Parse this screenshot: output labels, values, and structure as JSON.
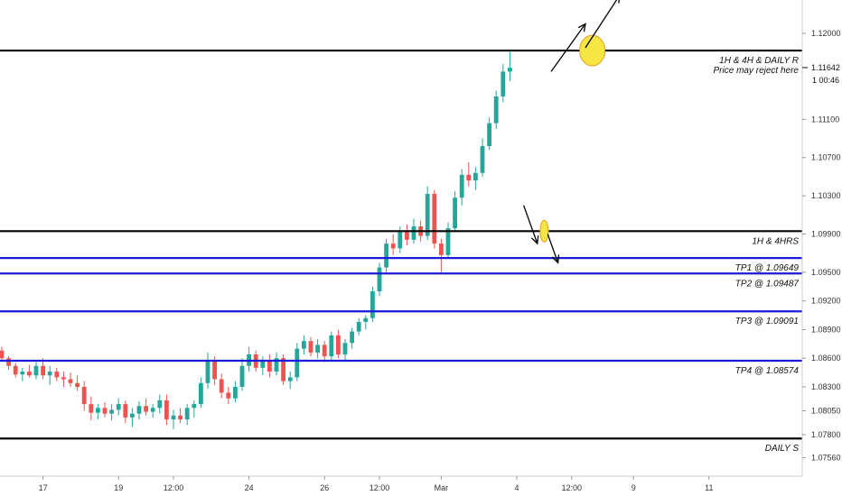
{
  "chart_data": {
    "type": "candlestick",
    "instrument_hint": "EURUSD-style price chart",
    "y_axis": {
      "ticks": [
        "1.12000",
        "1.11100",
        "1.10700",
        "1.10300",
        "1.09900",
        "1.09500",
        "1.09200",
        "1.08900",
        "1.08600",
        "1.08300",
        "1.08050",
        "1.07800",
        "1.07560"
      ],
      "tick_values": [
        1.12,
        1.111,
        1.107,
        1.103,
        1.099,
        1.095,
        1.092,
        1.089,
        1.086,
        1.083,
        1.0805,
        1.078,
        1.0756
      ],
      "current_price": "1.11642",
      "countdown": "1 00:46"
    },
    "x_axis": {
      "ticks": [
        "17",
        "19",
        "12:00",
        "24",
        "26",
        "12:00",
        "Mar",
        "4",
        "12:00",
        "9",
        "11"
      ],
      "tick_index": [
        6,
        17,
        25,
        36,
        47,
        55,
        64,
        75,
        83,
        92,
        103
      ]
    },
    "levels": [
      {
        "label": "1H & 4H & DAILY R",
        "sublabel": "Price may reject here",
        "value": 1.1182,
        "color": "#000000"
      },
      {
        "label": "1H & 4HRS",
        "value": 1.0993,
        "color": "#000000"
      },
      {
        "label": "TP1 @ 1.09649",
        "value": 1.09649,
        "color": "#1a1adb"
      },
      {
        "label": "TP2 @ 1.09487",
        "value": 1.09487,
        "color": "#1a1adb"
      },
      {
        "label": "TP3 @ 1.09091",
        "value": 1.09091,
        "color": "#1a1adb"
      },
      {
        "label": "TP4 @ 1.08574",
        "value": 1.08574,
        "color": "#1a1adb"
      },
      {
        "label": "DAILY S",
        "value": 1.0776,
        "color": "#000000"
      }
    ],
    "annotations": [
      {
        "type": "circle",
        "color": "#f5e642",
        "near_level": 1.1182,
        "at_index": 86
      },
      {
        "type": "circle",
        "color": "#f5e642",
        "near_level": 1.0993,
        "at_index": 79
      },
      {
        "type": "arrow",
        "from": [
          80,
          1.116
        ],
        "to": [
          85,
          1.121
        ]
      },
      {
        "type": "arrow",
        "from": [
          85,
          1.1185
        ],
        "to": [
          90,
          1.124
        ]
      },
      {
        "type": "arrow",
        "from": [
          76,
          1.102
        ],
        "to": [
          78,
          1.098
        ]
      },
      {
        "type": "arrow",
        "from": [
          79.5,
          1.099
        ],
        "to": [
          81,
          1.096
        ]
      }
    ],
    "colors": {
      "up": "#26a69a",
      "down": "#ef5350",
      "blue_level": "#1a1adb"
    },
    "grid": false,
    "candles": [
      [
        1.0868,
        1.0872,
        1.0858,
        1.086
      ],
      [
        1.086,
        1.0862,
        1.0848,
        1.0852
      ],
      [
        1.0852,
        1.0855,
        1.084,
        1.0843
      ],
      [
        1.0843,
        1.085,
        1.0836,
        1.0846
      ],
      [
        1.0846,
        1.0853,
        1.084,
        1.0842
      ],
      [
        1.0842,
        1.0856,
        1.0838,
        1.0852
      ],
      [
        1.0852,
        1.086,
        1.0838,
        1.0842
      ],
      [
        1.0842,
        1.0852,
        1.0832,
        1.0846
      ],
      [
        1.0846,
        1.085,
        1.0836,
        1.084
      ],
      [
        1.084,
        1.0846,
        1.083,
        1.0838
      ],
      [
        1.0838,
        1.0845,
        1.083,
        1.0834
      ],
      [
        1.0834,
        1.0842,
        1.0826,
        1.083
      ],
      [
        1.083,
        1.0836,
        1.0805,
        1.0812
      ],
      [
        1.0812,
        1.082,
        1.0795,
        1.0803
      ],
      [
        1.0803,
        1.0812,
        1.0796,
        1.0808
      ],
      [
        1.0808,
        1.0814,
        1.0798,
        1.0802
      ],
      [
        1.0802,
        1.0812,
        1.0795,
        1.0806
      ],
      [
        1.0806,
        1.0818,
        1.08,
        1.0812
      ],
      [
        1.0812,
        1.0816,
        1.0792,
        1.0798
      ],
      [
        1.0798,
        1.0808,
        1.0788,
        1.0802
      ],
      [
        1.0802,
        1.0815,
        1.0796,
        1.081
      ],
      [
        1.081,
        1.0818,
        1.08,
        1.0804
      ],
      [
        1.0804,
        1.0812,
        1.0798,
        1.0808
      ],
      [
        1.0808,
        1.0822,
        1.0802,
        1.0816
      ],
      [
        1.0816,
        1.0822,
        1.079,
        1.0796
      ],
      [
        1.0796,
        1.0806,
        1.0786,
        1.08
      ],
      [
        1.08,
        1.0808,
        1.0792,
        1.0796
      ],
      [
        1.0796,
        1.0812,
        1.079,
        1.0808
      ],
      [
        1.0808,
        1.0816,
        1.0798,
        1.0812
      ],
      [
        1.0812,
        1.084,
        1.0808,
        1.0834
      ],
      [
        1.0834,
        1.0866,
        1.0828,
        1.0858
      ],
      [
        1.0858,
        1.0862,
        1.0832,
        1.0838
      ],
      [
        1.0838,
        1.0844,
        1.0818,
        1.0824
      ],
      [
        1.0824,
        1.083,
        1.0812,
        1.0818
      ],
      [
        1.0818,
        1.0836,
        1.0814,
        1.083
      ],
      [
        1.083,
        1.086,
        1.0826,
        1.0852
      ],
      [
        1.0852,
        1.0872,
        1.0846,
        1.0864
      ],
      [
        1.0864,
        1.0868,
        1.0846,
        1.085
      ],
      [
        1.085,
        1.0862,
        1.0842,
        1.0858
      ],
      [
        1.0858,
        1.0864,
        1.084,
        1.0846
      ],
      [
        1.0846,
        1.0866,
        1.0842,
        1.086
      ],
      [
        1.086,
        1.0864,
        1.0832,
        1.0836
      ],
      [
        1.0836,
        1.0846,
        1.0828,
        1.084
      ],
      [
        1.084,
        1.0876,
        1.0836,
        1.087
      ],
      [
        1.087,
        1.0884,
        1.0864,
        1.0878
      ],
      [
        1.0878,
        1.0882,
        1.0862,
        1.0866
      ],
      [
        1.0866,
        1.088,
        1.086,
        1.0874
      ],
      [
        1.0874,
        1.0878,
        1.0856,
        1.0862
      ],
      [
        1.0862,
        1.0888,
        1.0858,
        1.0884
      ],
      [
        1.0884,
        1.089,
        1.086,
        1.0864
      ],
      [
        1.0864,
        1.088,
        1.0858,
        1.0876
      ],
      [
        1.0876,
        1.0892,
        1.087,
        1.0888
      ],
      [
        1.0888,
        1.0902,
        1.0884,
        1.0898
      ],
      [
        1.0898,
        1.0905,
        1.089,
        1.0902
      ],
      [
        1.0902,
        1.0935,
        1.0898,
        1.093
      ],
      [
        1.093,
        1.096,
        1.0925,
        1.0955
      ],
      [
        1.0955,
        1.0985,
        1.095,
        1.098
      ],
      [
        1.098,
        1.099,
        1.0968,
        1.0975
      ],
      [
        1.0975,
        1.0998,
        1.097,
        1.0992
      ],
      [
        1.0992,
        1.1,
        1.0978,
        1.0984
      ],
      [
        1.0984,
        1.1006,
        1.098,
        1.0998
      ],
      [
        1.0998,
        1.1004,
        1.0982,
        1.0988
      ],
      [
        1.0988,
        1.104,
        1.0984,
        1.1032
      ],
      [
        1.1032,
        1.1036,
        1.0975,
        1.098
      ],
      [
        1.098,
        1.0985,
        1.095,
        1.0968
      ],
      [
        1.0968,
        1.1002,
        1.0964,
        1.0996
      ],
      [
        1.0996,
        1.1035,
        1.0992,
        1.1028
      ],
      [
        1.1028,
        1.1058,
        1.102,
        1.1052
      ],
      [
        1.1052,
        1.1065,
        1.104,
        1.1046
      ],
      [
        1.1046,
        1.106,
        1.1036,
        1.1054
      ],
      [
        1.1054,
        1.109,
        1.105,
        1.1082
      ],
      [
        1.1082,
        1.1112,
        1.1078,
        1.1106
      ],
      [
        1.1106,
        1.114,
        1.11,
        1.1134
      ],
      [
        1.1134,
        1.1168,
        1.1128,
        1.116
      ],
      [
        1.116,
        1.1182,
        1.115,
        1.1164
      ]
    ]
  }
}
